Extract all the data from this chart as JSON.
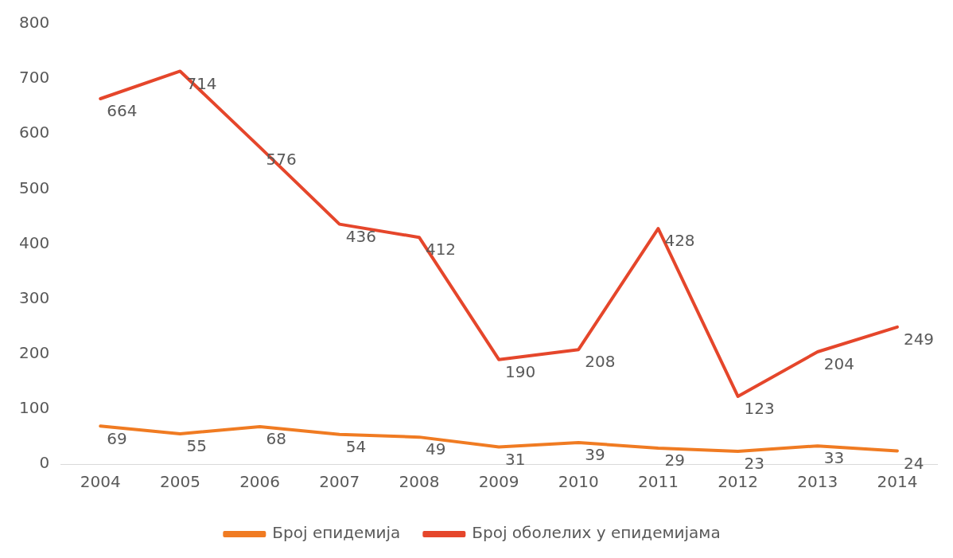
{
  "chart_data": {
    "type": "line",
    "categories": [
      "2004",
      "2005",
      "2006",
      "2007",
      "2008",
      "2009",
      "2010",
      "2011",
      "2012",
      "2013",
      "2014"
    ],
    "series": [
      {
        "name": "Број епидемија",
        "color": "#f07b22",
        "values": [
          69,
          55,
          68,
          54,
          49,
          31,
          39,
          29,
          23,
          33,
          24
        ]
      },
      {
        "name": "Број оболелих у епидемијама",
        "color": "#e5462b",
        "values": [
          664,
          714,
          576,
          436,
          412,
          190,
          208,
          428,
          123,
          204,
          249
        ]
      }
    ],
    "ylim": [
      0,
      800
    ],
    "yticks": [
      0,
      100,
      200,
      300,
      400,
      500,
      600,
      700,
      800
    ],
    "grid": false,
    "legend": "bottom",
    "data_labels": true,
    "marker": "none",
    "line_style": "solid"
  }
}
